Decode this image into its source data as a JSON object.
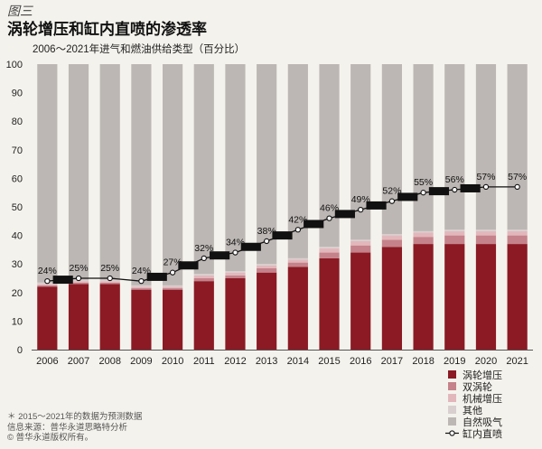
{
  "figure_label": "图三",
  "chart_data": {
    "type": "bar",
    "stacked": true,
    "title": "涡轮增压和缸内直喷的渗透率",
    "subtitle": "2006～2021年进气和燃油供给类型（百分比）",
    "categories": [
      "2006",
      "2007",
      "2008",
      "2009",
      "2010",
      "2011",
      "2012",
      "2013",
      "2014",
      "2015",
      "2016",
      "2017",
      "2018",
      "2019",
      "2020",
      "2021"
    ],
    "ylim": [
      0,
      100
    ],
    "yticks": [
      0,
      10,
      20,
      30,
      40,
      50,
      60,
      70,
      80,
      90,
      100
    ],
    "series": [
      {
        "name": "涡轮增压",
        "color": "#8b1a24",
        "values": [
          22,
          23,
          23,
          21,
          21,
          24,
          25,
          27,
          29,
          32,
          34,
          36,
          37,
          37,
          37,
          37
        ]
      },
      {
        "name": "双涡轮",
        "color": "#c5828a",
        "values": [
          0.5,
          0.5,
          0.5,
          0.5,
          0.5,
          1,
          1,
          1.5,
          1.5,
          2,
          2.5,
          2.5,
          2.5,
          3,
          3,
          3
        ]
      },
      {
        "name": "机械增压",
        "color": "#e2b7bb",
        "values": [
          0.5,
          0.5,
          0.5,
          0.5,
          0.5,
          1,
          1,
          1,
          1,
          1.5,
          1.5,
          1.5,
          1.5,
          1.5,
          1.5,
          1.5
        ]
      },
      {
        "name": "其他",
        "color": "#d9cfcf",
        "values": [
          0.5,
          0.5,
          0.5,
          0.5,
          0.5,
          0.5,
          0.5,
          0.5,
          0.5,
          0.5,
          0.5,
          0.5,
          0.5,
          0.5,
          0.5,
          0.5
        ]
      },
      {
        "name": "自然吸气",
        "color": "#bcb7b4",
        "values": [
          76.5,
          75.5,
          75.5,
          77.5,
          77.5,
          73.5,
          72.5,
          70,
          68,
          64,
          61.5,
          59.5,
          58.5,
          58,
          58,
          58
        ]
      }
    ],
    "line_series": {
      "name": "缸内直喷",
      "values": [
        24,
        25,
        25,
        24,
        27,
        32,
        34,
        38,
        42,
        46,
        49,
        52,
        55,
        56,
        57,
        57
      ],
      "labels": [
        "24%",
        "25%",
        "25%",
        "24%",
        "27%",
        "32%",
        "34%",
        "38%",
        "42%",
        "46%",
        "49%",
        "52%",
        "55%",
        "56%",
        "57%",
        "57%"
      ]
    },
    "legend_position": "bottom-right"
  },
  "notes": [
    "＊ 2015～2021年的数据为预测数据",
    "信息来源：普华永道思略特分析",
    "© 普华永道版权所有。"
  ]
}
